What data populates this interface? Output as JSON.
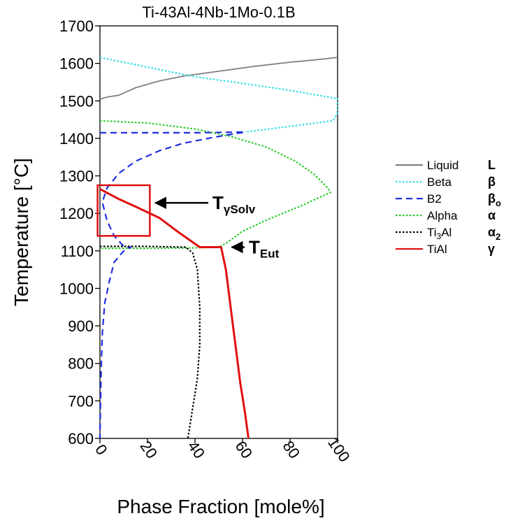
{
  "chart_data": {
    "type": "line",
    "title": "Ti-43Al-4Nb-1Mo-0.1B",
    "xlabel": "Phase Fraction [mole%]",
    "ylabel": "Temperature [°C]",
    "xlim": [
      0,
      100
    ],
    "ylim": [
      600,
      1700
    ],
    "x_ticks": [
      "0",
      "20",
      "40",
      "60",
      "80",
      "100"
    ],
    "y_ticks": [
      "600",
      "700",
      "800",
      "900",
      "1000",
      "1100",
      "1200",
      "1300",
      "1400",
      "1500",
      "1600",
      "1700"
    ],
    "grid": false,
    "legend_position": "right",
    "series": [
      {
        "name": "Liquid",
        "symbol": "L",
        "color": "#808080",
        "dash": "solid",
        "points": [
          [
            0,
            1505
          ],
          [
            3,
            1510
          ],
          [
            8,
            1515
          ],
          [
            15,
            1535
          ],
          [
            25,
            1553
          ],
          [
            35,
            1566
          ],
          [
            50,
            1579
          ],
          [
            65,
            1592
          ],
          [
            80,
            1603
          ],
          [
            90,
            1609
          ],
          [
            100,
            1616
          ]
        ]
      },
      {
        "name": "Beta",
        "symbol": "β",
        "color": "#33e0e8",
        "dash": "dotted",
        "points": [
          [
            0,
            1616
          ],
          [
            20,
            1590
          ],
          [
            40,
            1564
          ],
          [
            60,
            1547
          ],
          [
            80,
            1528
          ],
          [
            100,
            1506
          ],
          [
            100,
            1468
          ],
          [
            98,
            1447
          ],
          [
            80,
            1432
          ],
          [
            61,
            1417
          ]
        ]
      },
      {
        "name": "B2",
        "symbol": "βo",
        "color": "#1f2ee0",
        "dash": "dashed",
        "points": [
          [
            0,
            1415
          ],
          [
            20,
            1415
          ],
          [
            40,
            1415
          ],
          [
            61,
            1417
          ],
          [
            48,
            1403
          ],
          [
            35,
            1387
          ],
          [
            25,
            1367
          ],
          [
            15,
            1339
          ],
          [
            8,
            1307
          ],
          [
            3,
            1268
          ],
          [
            1,
            1230
          ],
          [
            3,
            1180
          ],
          [
            6,
            1140
          ],
          [
            10,
            1112
          ],
          [
            13,
            1110
          ],
          [
            10,
            1100
          ],
          [
            6,
            1070
          ],
          [
            4,
            1020
          ],
          [
            2,
            960
          ],
          [
            1,
            880
          ],
          [
            0.5,
            780
          ],
          [
            0.2,
            680
          ],
          [
            0,
            600
          ]
        ]
      },
      {
        "name": "Alpha",
        "symbol": "α",
        "color": "#22cc22",
        "dash": "dotted",
        "points": [
          [
            0,
            1447
          ],
          [
            20,
            1441
          ],
          [
            40,
            1425
          ],
          [
            55,
            1405
          ],
          [
            70,
            1377
          ],
          [
            82,
            1340
          ],
          [
            90,
            1305
          ],
          [
            96,
            1267
          ],
          [
            97,
            1256
          ],
          [
            85,
            1221
          ],
          [
            70,
            1182
          ],
          [
            60,
            1152
          ],
          [
            53,
            1120
          ],
          [
            50,
            1110
          ],
          [
            40,
            1108
          ],
          [
            20,
            1107
          ],
          [
            0,
            1107
          ]
        ]
      },
      {
        "name": "Ti3Al",
        "symbol": "α2",
        "color": "#000000",
        "dash": "dotted",
        "points": [
          [
            0,
            1112
          ],
          [
            20,
            1112
          ],
          [
            36,
            1110
          ],
          [
            39,
            1095
          ],
          [
            41,
            1050
          ],
          [
            42,
            950
          ],
          [
            42,
            850
          ],
          [
            41,
            760
          ],
          [
            39,
            680
          ],
          [
            37,
            600
          ]
        ]
      },
      {
        "name": "TiAl",
        "symbol": "γ",
        "color": "#e01010",
        "dash": "solid",
        "points": [
          [
            0,
            1265
          ],
          [
            8,
            1238
          ],
          [
            16,
            1215
          ],
          [
            25,
            1188
          ],
          [
            33,
            1150
          ],
          [
            42,
            1110
          ],
          [
            51,
            1110
          ],
          [
            53,
            1050
          ],
          [
            55,
            950
          ],
          [
            57,
            850
          ],
          [
            59,
            750
          ],
          [
            61,
            670
          ],
          [
            62.5,
            600
          ]
        ]
      }
    ],
    "annotations": [
      {
        "label_main": "T",
        "label_sub": "γSolv",
        "points_to": [
          21,
          1228
        ]
      },
      {
        "label_main": "T",
        "label_sub": "Eut",
        "points_to": [
          52,
          1110
        ]
      }
    ],
    "highlight_box": {
      "x_range": [
        -1,
        21
      ],
      "y_range": [
        1140,
        1275
      ],
      "color": "#e01010"
    }
  }
}
